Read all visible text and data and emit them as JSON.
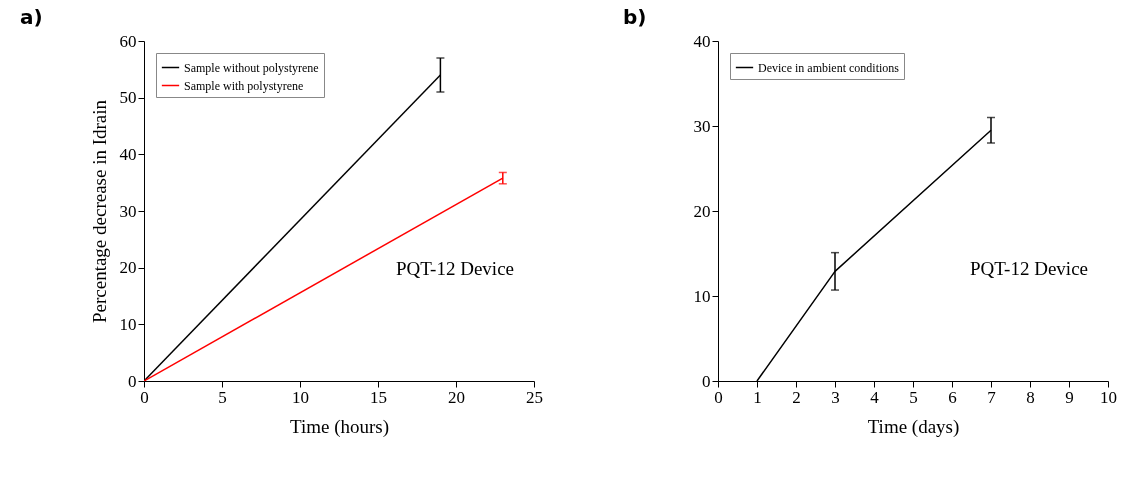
{
  "chart_data": [
    {
      "type": "line",
      "title": "a)",
      "xlabel": "Time (hours)",
      "ylabel": "Percentage decrease in Idrain",
      "xlim": [
        0,
        25
      ],
      "xticks": [
        0,
        5,
        10,
        15,
        20,
        25
      ],
      "ylim": [
        0,
        60
      ],
      "yticks": [
        0,
        10,
        20,
        30,
        40,
        50,
        60
      ],
      "legend": "top left",
      "annotations": [
        "PQT-12 Device"
      ],
      "series": [
        {
          "name": "Sample without polystyrene",
          "color": "#000000",
          "x": [
            0,
            19
          ],
          "values": [
            0,
            54
          ],
          "errors": [
            null,
            3
          ]
        },
        {
          "name": "Sample with polystyrene",
          "color": "#ff0000",
          "x": [
            0,
            23
          ],
          "values": [
            0,
            35.8
          ],
          "errors": [
            null,
            1
          ]
        }
      ]
    },
    {
      "type": "line",
      "title": "b)",
      "xlabel": "Time (days)",
      "xlim": [
        0,
        10
      ],
      "xticks": [
        0,
        1,
        2,
        3,
        4,
        5,
        6,
        7,
        8,
        9,
        10
      ],
      "ylim": [
        0,
        40
      ],
      "yticks": [
        0,
        10,
        20,
        30,
        40
      ],
      "legend": "top left",
      "annotations": [
        "PQT-12 Device"
      ],
      "series": [
        {
          "name": "Device in ambient conditions",
          "color": "#000000",
          "x": [
            1,
            3,
            7
          ],
          "values": [
            0,
            12.9,
            29.5
          ],
          "errors": [
            null,
            2.2,
            1.5
          ]
        }
      ]
    }
  ]
}
